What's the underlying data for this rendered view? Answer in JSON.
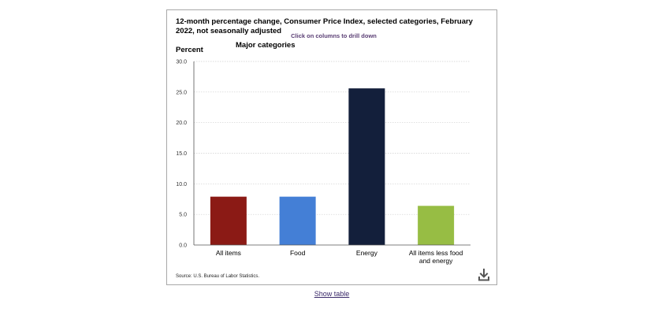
{
  "chart_data": {
    "type": "bar",
    "title": "12-month percentage change, Consumer Price Index, selected categories, February 2022, not seasonally adjusted",
    "subtitle": "Click on columns to drill down",
    "series_name": "Major categories",
    "ylabel": "Percent",
    "xlabel": "",
    "categories": [
      "All items",
      "Food",
      "Energy",
      "All items less food and energy"
    ],
    "category_label_lines": [
      [
        "All items"
      ],
      [
        "Food"
      ],
      [
        "Energy"
      ],
      [
        "All items less food",
        "and energy"
      ]
    ],
    "values": [
      7.9,
      7.9,
      25.6,
      6.4
    ],
    "colors": [
      "#8b1a15",
      "#447fd6",
      "#131f3b",
      "#97bd44"
    ],
    "ylim": [
      0,
      30
    ],
    "yticks": [
      "0.0",
      "5.0",
      "10.0",
      "15.0",
      "20.0",
      "25.0",
      "30.0"
    ],
    "grid": true
  },
  "source": "Source: U.S. Bureau of Labor Statistics.",
  "show_table_label": "Show table",
  "icons": {
    "download": "download-icon"
  }
}
